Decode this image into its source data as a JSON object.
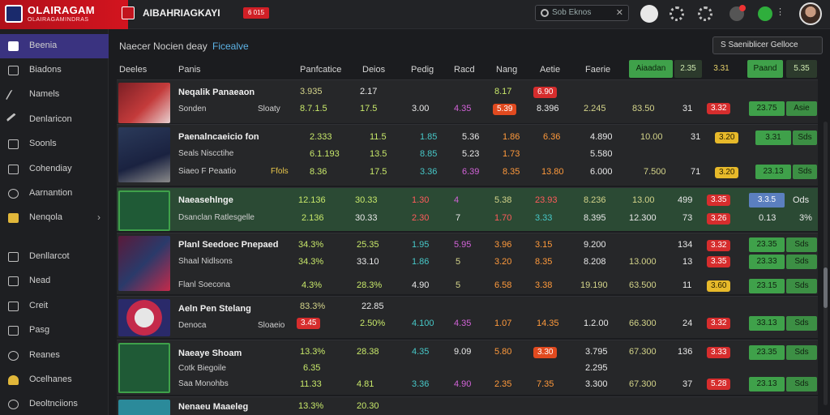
{
  "brand": {
    "title": "OLAIRAGAM",
    "subtitle": "OLAIRAGAMINDRAS",
    "logo_color": "#1a2a6c"
  },
  "app": {
    "name": "AIBAHRIAGKAYI",
    "badge": "6 015"
  },
  "search": {
    "placeholder": "Sob Eknos"
  },
  "sidebar": {
    "items": [
      {
        "label": "Beenia",
        "icon": "folder-icon",
        "active": true
      },
      {
        "label": "Biadons",
        "icon": "document-icon"
      },
      {
        "label": "Namels",
        "icon": "pen-icon"
      },
      {
        "label": "Denlaricon",
        "icon": "hammer-icon"
      },
      {
        "label": "Soonls",
        "icon": "monitor-icon"
      },
      {
        "label": "Cohendiay",
        "icon": "edit-icon"
      },
      {
        "label": "Aarnantion",
        "icon": "tools-icon"
      },
      {
        "label": "Nenqola",
        "icon": "briefcase-icon",
        "chevron": "›"
      },
      {
        "label": "Denllarcot",
        "icon": "folder-icon"
      },
      {
        "label": "Nead",
        "icon": "image-icon"
      },
      {
        "label": "Creit",
        "icon": "monitor-icon"
      },
      {
        "label": "Pasg",
        "icon": "edit-icon"
      },
      {
        "label": "Reanes",
        "icon": "globe-icon"
      },
      {
        "label": "Ocelhanes",
        "icon": "bell-icon"
      },
      {
        "label": "Deoltnciions",
        "icon": "globe-icon"
      }
    ]
  },
  "main": {
    "crumb": "Naecer Nocien deay",
    "crumb_link": "Ficealve",
    "sort_button": "S Saeniblicer Gelloce",
    "headers": [
      "Deeles",
      "Panis",
      "Panfcatice",
      "Deios",
      "Pedig",
      "Racd",
      "Nang",
      "Aetie",
      "Faerie"
    ],
    "header_buttons": [
      "Aiaadan",
      "2.35",
      "3.31",
      "Paand",
      "5.35"
    ],
    "rows": [
      {
        "name": "Neqalik Panaeaon",
        "sub": "Sonden",
        "sub2": "Sloaty",
        "c1a": "3.935",
        "c1b": "8.7.1.5",
        "c2a": "2.17",
        "c2b": "17.5",
        "c3": "3.00",
        "c4": "4.35",
        "c5a": "8.17",
        "c5b": "5.39",
        "c6a": "6.90",
        "c6b": "8.396",
        "c7": "2.245",
        "c8": "83.50",
        "c9": "31",
        "pill": "3.32",
        "btn1": "23.75",
        "btn2": "Asie"
      },
      {
        "name": "Paenalncaeicio fon",
        "sub": "Seals Niscctihe",
        "sub2": "Siaeo F Peaatio",
        "sub3": "Ffols",
        "c1a": "2.333",
        "c1b": "6.1.193",
        "c1c": "8.36",
        "c2a": "11.5",
        "c2b": "13.5",
        "c2c": "17.5",
        "c3a": "1.85",
        "c3b": "8.85",
        "c3c": "3.36",
        "c4a": "5.36",
        "c4b": "5.23",
        "c4c": "6.39",
        "c5a": "1.86",
        "c5b": "1.73",
        "c5c": "8.35",
        "c6a": "6.36",
        "c6c": "13.80",
        "c7a": "4.890",
        "c7b": "5.580",
        "c7c": "6.000",
        "c8a": "10.00",
        "c8c": "7.500",
        "c9a": "31",
        "c9c": "71",
        "pillY1": "3.20",
        "pillY2": "3.20",
        "btn1": "3.31",
        "btn2": "Sds",
        "btn3": "23.13",
        "btn4": "Sds"
      },
      {
        "name": "Naeasehlnge",
        "sub": "Dsanclan Ratlesgelle",
        "c1a": "12.136",
        "c1b": "2.136",
        "c2a": "30.33",
        "c2b": "30.33",
        "c3a": "1.30",
        "c3b": "2.30",
        "c4a": "4",
        "c4b": "7",
        "c5a": "5.38",
        "c5b": "1.70",
        "c6a": "23.93",
        "c6b": "3.33",
        "c7a": "8.236",
        "c7b": "8.395",
        "c8a": "13.00",
        "c8b": "12.300",
        "c9a": "499",
        "c9b": "73",
        "pill1": "3.35",
        "pill2": "3.26",
        "btn1": "3.3.5",
        "btn2": "Ods",
        "v1": "0.13",
        "v2": "3%"
      },
      {
        "name": "Planl Seedoec Pnepaed",
        "sub": "Shaal Nidlsons",
        "sub2": "Flanl Soecona",
        "c1a": "34.3%",
        "c1b": "34.3%",
        "c1c": "4.3%",
        "c2a": "25.35",
        "c2b": "33.10",
        "c2c": "28.3%",
        "c3a": "1.95",
        "c3b": "1.86",
        "c3c": "4.90",
        "c4a": "5.95",
        "c4b": "5",
        "c4c": "5",
        "c5a": "3.96",
        "c5b": "3.20",
        "c5c": "6.58",
        "c6a": "3.15",
        "c6b": "8.35",
        "c6c": "3.38",
        "c7a": "9.200",
        "c7b": "8.208",
        "c7c": "19.190",
        "c8a": "",
        "c8b": "13.000",
        "c8c": "63.500",
        "c9a": "134",
        "c9b": "13",
        "c9c": "11",
        "pill1": "3.32",
        "pill2": "3.35",
        "pillY": "3.60",
        "btn1": "23.35",
        "btn2": "Sds",
        "btn3": "23.33",
        "btn4": "Sds",
        "btn5": "23.15",
        "btn6": "Sds"
      },
      {
        "name": "Aeln Pen Stelang",
        "sub": "Denoca",
        "sub2": "Sloaeio",
        "c1a": "83.3%",
        "c1b": "3.45",
        "c2a": "22.85",
        "c2b": "2.50%",
        "c3": "4.100",
        "c4": "4.35",
        "c5": "1.07",
        "c6": "14.35",
        "c7": "1.2.00",
        "c8": "66.300",
        "c9": "24",
        "pill": "3.32",
        "btn1": "33.13",
        "btn2": "Sds"
      },
      {
        "name": "Naeaye Shoam",
        "sub": "Cotk Biegoile",
        "sub2": "Saa Monohbs",
        "c1a": "13.3%",
        "c1b": "6.35",
        "c1c": "11.33",
        "c2a": "28.38",
        "c2b": "",
        "c2c": "4.81",
        "c3a": "4.35",
        "c3c": "3.36",
        "c4a": "9.09",
        "c4c": "4.90",
        "c5a": "5.80",
        "c5c": "2.35",
        "c6a": "3.30",
        "c6c": "7.35",
        "c7a": "3.795",
        "c7b": "2.295",
        "c7c": "3.300",
        "c8a": "67.300",
        "c8c": "67.300",
        "c9a": "136",
        "c9c": "37",
        "pill1": "3.33",
        "pill2": "5.28",
        "btn1": "23.35",
        "btn2": "Sds",
        "btn3": "23.13",
        "btn4": "Sds"
      },
      {
        "name": "Nenaeu Maaeleg",
        "c1a": "13.3%",
        "c2a": "20.30"
      }
    ]
  }
}
